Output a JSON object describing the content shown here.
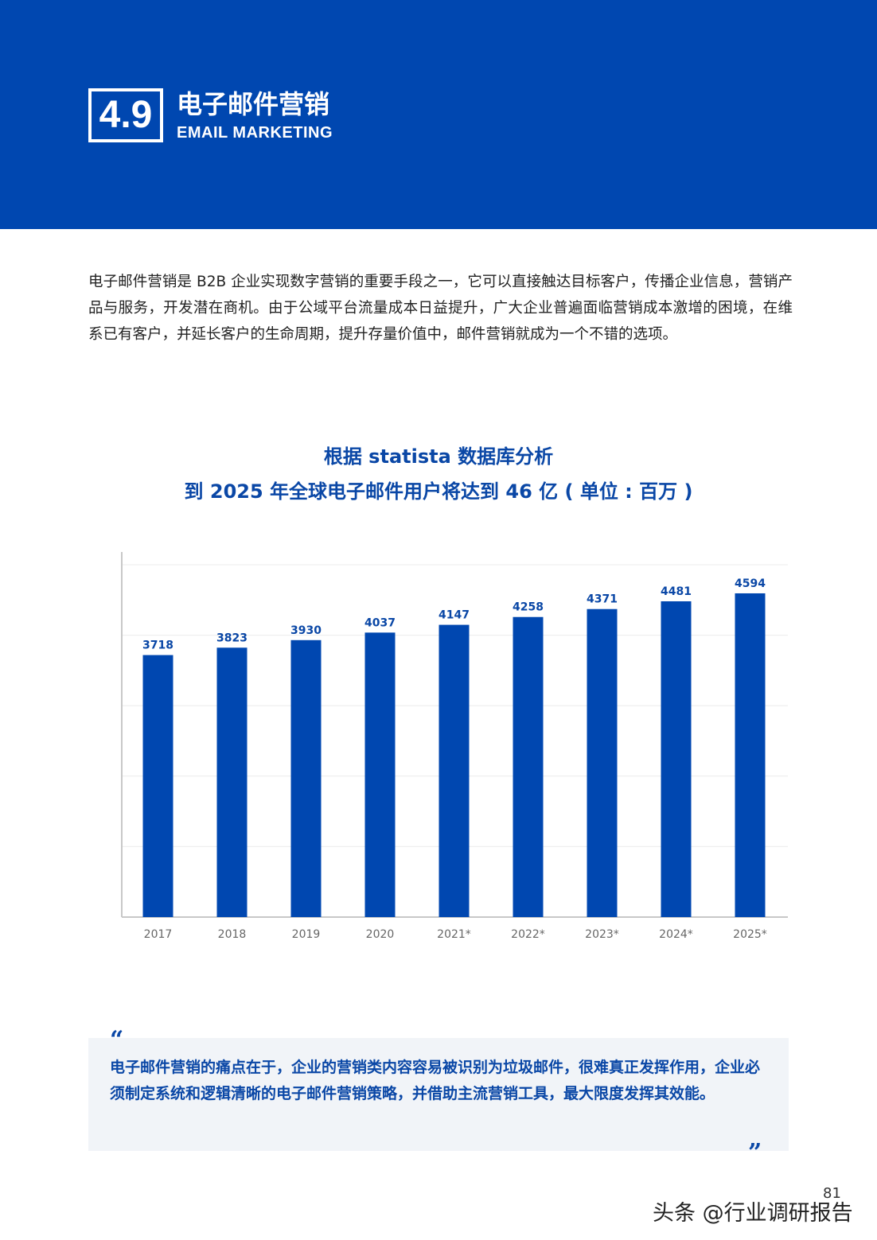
{
  "header": {
    "section_number": "4.9",
    "title_cn": "电子邮件营销",
    "title_en": "EMAIL MARKETING",
    "bg_color": "#0047b0"
  },
  "intro": "电子邮件营销是 B2B 企业实现数字营销的重要手段之一，它可以直接触达目标客户，传播企业信息，营销产品与服务，开发潜在商机。由于公域平台流量成本日益提升，广大企业普遍面临营销成本激增的困境，在维系已有客户，并延长客户的生命周期，提升存量价值中，邮件营销就成为一个不错的选项。",
  "chart_data": {
    "type": "bar",
    "title": "根据 statista 数据库分析",
    "subtitle": "到 2025 年全球电子邮件用户将达到 46 亿 ( 单位 : 百万 )",
    "categories": [
      "2017",
      "2018",
      "2019",
      "2020",
      "2021*",
      "2022*",
      "2023*",
      "2024*",
      "2025*"
    ],
    "values": [
      3718,
      3823,
      3930,
      4037,
      4147,
      4258,
      4371,
      4481,
      4594
    ],
    "yticks": [
      "0",
      "1000",
      "2000",
      "3000",
      "4000",
      "5000"
    ],
    "ylim": [
      0,
      5000
    ],
    "grid": true,
    "bar_color": "#0047b0",
    "label_color": "#0a47a6"
  },
  "quote": {
    "open": "“",
    "close": "”",
    "text": "电子邮件营销的痛点在于，企业的营销类内容容易被识别为垃圾邮件，很难真正发挥作用，企业必须制定系统和逻辑清晰的电子邮件营销策略，并借助主流营销工具，最大限度发挥其效能。"
  },
  "page_number": "81",
  "watermark": "头条 @行业调研报告"
}
